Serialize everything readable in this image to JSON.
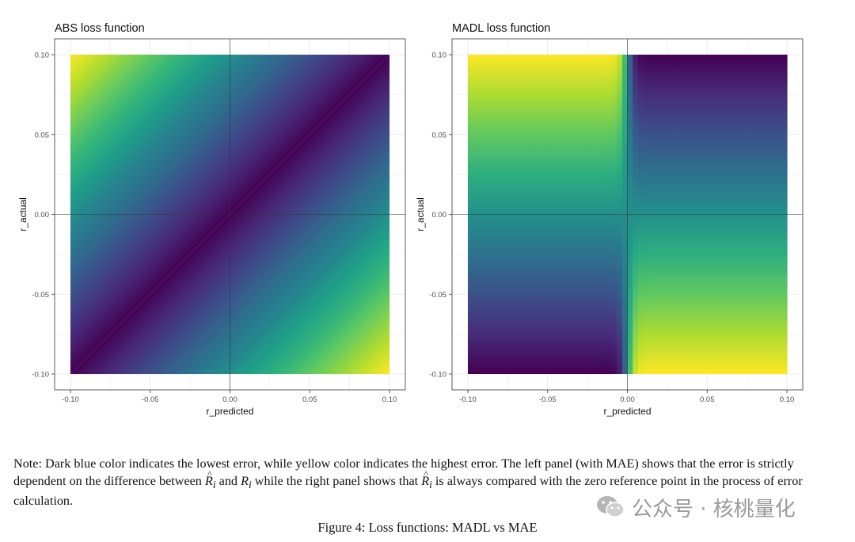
{
  "colors": {
    "viridis": [
      "#440154",
      "#482878",
      "#3e4989",
      "#31688e",
      "#26828e",
      "#1f9e89",
      "#35b779",
      "#6ece58",
      "#b5de2b",
      "#fde725"
    ],
    "panel_border": "#333333",
    "gridline": "#ebebeb",
    "zero_line": "#333333"
  },
  "chart_data": [
    {
      "type": "heatmap",
      "title": "ABS loss function",
      "xlabel": "r_predicted",
      "ylabel": "r_actual",
      "xlim": [
        -0.1,
        0.1
      ],
      "ylim": [
        -0.1,
        0.1
      ],
      "x_ticks": [
        -0.1,
        -0.05,
        0.0,
        0.05,
        0.1
      ],
      "y_ticks": [
        -0.1,
        -0.05,
        0.0,
        0.05,
        0.1
      ],
      "x_tick_labels": [
        "-0.10",
        "-0.05",
        "0.00",
        "0.05",
        "0.10"
      ],
      "y_tick_labels": [
        "-0.10",
        "-0.05",
        "0.00",
        "0.05",
        "0.10"
      ],
      "loss": "abs",
      "reference_lines": [
        {
          "axis": "x",
          "value": 0
        },
        {
          "axis": "y",
          "value": 0
        }
      ],
      "colorscale": "viridis",
      "grid": true,
      "legend": "none"
    },
    {
      "type": "heatmap",
      "title": "MADL loss function",
      "xlabel": "r_predicted",
      "ylabel": "r_actual",
      "xlim": [
        -0.1,
        0.1
      ],
      "ylim": [
        -0.1,
        0.1
      ],
      "x_ticks": [
        -0.1,
        -0.05,
        0.0,
        0.05,
        0.1
      ],
      "y_ticks": [
        -0.1,
        -0.05,
        0.0,
        0.05,
        0.1
      ],
      "x_tick_labels": [
        "-0.10",
        "-0.05",
        "0.00",
        "0.05",
        "0.10"
      ],
      "y_tick_labels": [
        "-0.10",
        "-0.05",
        "0.00",
        "0.05",
        "0.10"
      ],
      "loss": "madl",
      "reference_lines": [
        {
          "axis": "x",
          "value": 0
        },
        {
          "axis": "y",
          "value": 0
        }
      ],
      "colorscale": "viridis",
      "grid": true,
      "legend": "none"
    }
  ],
  "note": {
    "part1": "Note: Dark blue color indicates the lowest error, while yellow color indicates the highest error. The left panel (with MAE) shows that the error is strictly dependent on the difference between ",
    "r": "R",
    "sub_i": "i",
    "and": " and ",
    "part2": " while the right panel shows that ",
    "part3": " is always compared with the zero reference point in the process of error calculation."
  },
  "caption": "Figure 4: Loss functions: MADL vs MAE",
  "watermark": "公众号 · 核桃量化",
  "watermark_icon": "wechat-icon"
}
